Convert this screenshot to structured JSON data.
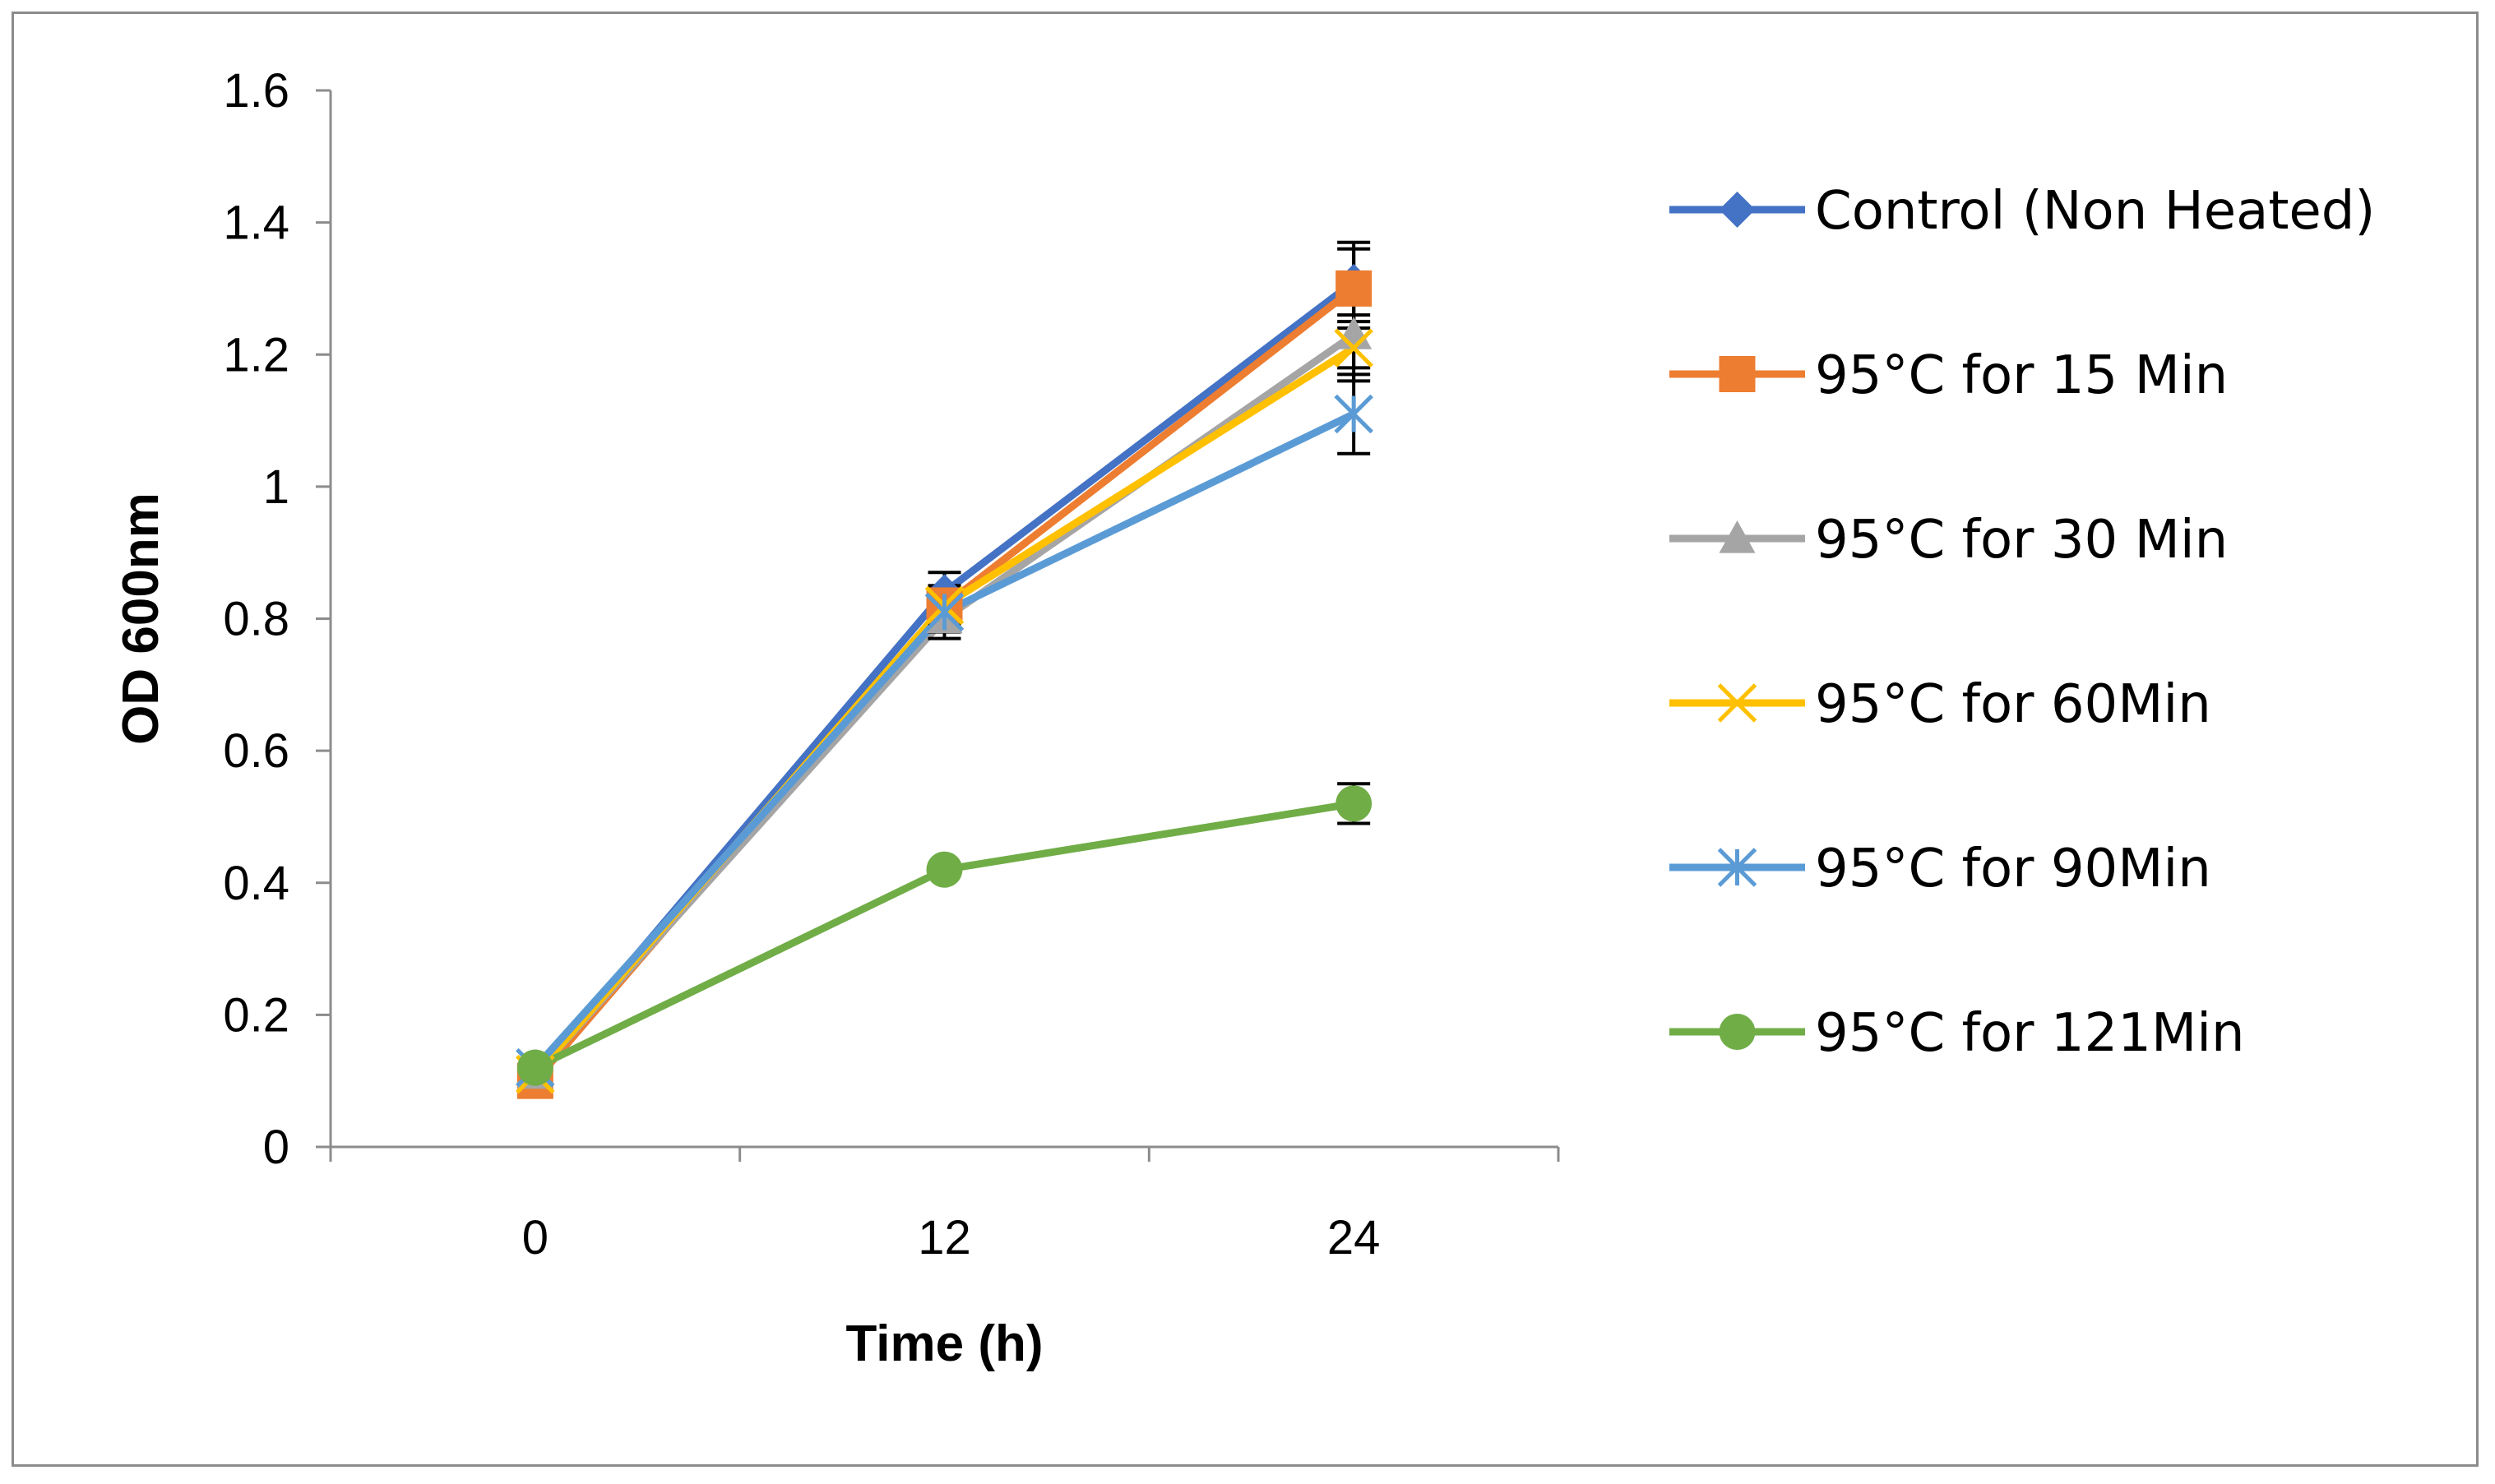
{
  "chart_data": {
    "type": "line",
    "title": "",
    "xlabel": "Time (h)",
    "ylabel": "OD 600nm",
    "categories": [
      "0",
      "12",
      "24"
    ],
    "ylim": [
      0,
      1.6
    ],
    "yticks": [
      "0",
      "0.2",
      "0.4",
      "0.6",
      "0.8",
      "1",
      "1.2",
      "1.4",
      "1.6"
    ],
    "ytick_values": [
      0,
      0.2,
      0.4,
      0.6,
      0.8,
      1.0,
      1.2,
      1.4,
      1.6
    ],
    "grid": false,
    "legend_position": "right",
    "series": [
      {
        "name": "Control (Non Heated)",
        "values": [
          0.11,
          0.84,
          1.31
        ],
        "errors": [
          0.0,
          0.03,
          0.06
        ],
        "color": "#4472C4",
        "marker": "diamond"
      },
      {
        "name": "95°C for 15 Min",
        "values": [
          0.1,
          0.82,
          1.3
        ],
        "errors": [
          0.0,
          0.03,
          0.06
        ],
        "color": "#ED7D31",
        "marker": "square"
      },
      {
        "name": "95°C for 30 Min",
        "values": [
          0.11,
          0.8,
          1.23
        ],
        "errors": [
          0.0,
          0.03,
          0.05
        ],
        "color": "#A5A5A5",
        "marker": "triangle"
      },
      {
        "name": "95°C for 60Min",
        "values": [
          0.11,
          0.82,
          1.21
        ],
        "errors": [
          0.0,
          0.03,
          0.05
        ],
        "color": "#FFC000",
        "marker": "x"
      },
      {
        "name": "95°C for 90Min",
        "values": [
          0.12,
          0.81,
          1.11
        ],
        "errors": [
          0.0,
          0.03,
          0.06
        ],
        "color": "#5B9BD5",
        "marker": "star"
      },
      {
        "name": "95°C for 121Min",
        "values": [
          0.12,
          0.42,
          0.52
        ],
        "errors": [
          0.0,
          0.0,
          0.03
        ],
        "color": "#70AD47",
        "marker": "circle"
      }
    ]
  }
}
